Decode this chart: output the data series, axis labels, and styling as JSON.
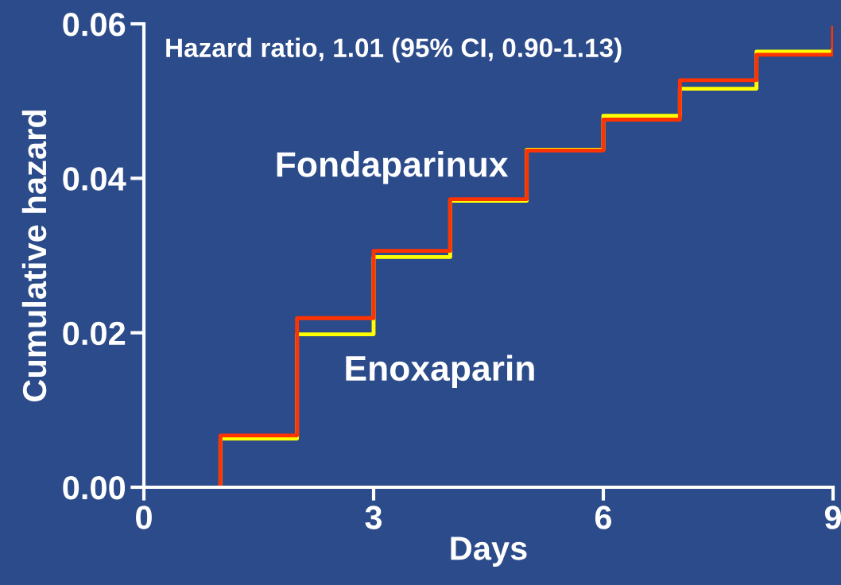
{
  "chart_data": {
    "type": "step",
    "xlabel": "Days",
    "ylabel": "Cumulative hazard",
    "annotations": [
      "Hazard ratio, 1.01 (95% CI, 0.90-1.13)",
      "Fondaparinux",
      "Enoxaparin"
    ],
    "series": [
      {
        "color": "#ffff00",
        "x": [
          1,
          1,
          2,
          3,
          4,
          5,
          6,
          7,
          8,
          9
        ],
        "values": [
          0,
          0.0063,
          0.0198,
          0.0298,
          0.0371,
          0.0437,
          0.0481,
          0.0516,
          0.0564,
          0.0567
        ]
      },
      {
        "color": "#ff3300",
        "x": [
          1,
          1,
          2,
          3,
          4,
          5,
          6,
          7,
          8,
          9,
          9
        ],
        "values": [
          0,
          0.0067,
          0.0219,
          0.0306,
          0.0373,
          0.0436,
          0.0476,
          0.0527,
          0.056,
          0.056,
          0.0595
        ]
      }
    ],
    "xlim": [
      0,
      9
    ],
    "xticks": [
      0,
      3,
      6,
      9
    ],
    "ylim": [
      0,
      0.06
    ],
    "yticks": [
      {
        "value": 0,
        "label": "0.00"
      },
      {
        "value": 0.02,
        "label": "0.02"
      },
      {
        "value": 0.04,
        "label": "0.04"
      },
      {
        "value": 0.06,
        "label": "0.06"
      }
    ],
    "grid": false,
    "legend": false
  }
}
